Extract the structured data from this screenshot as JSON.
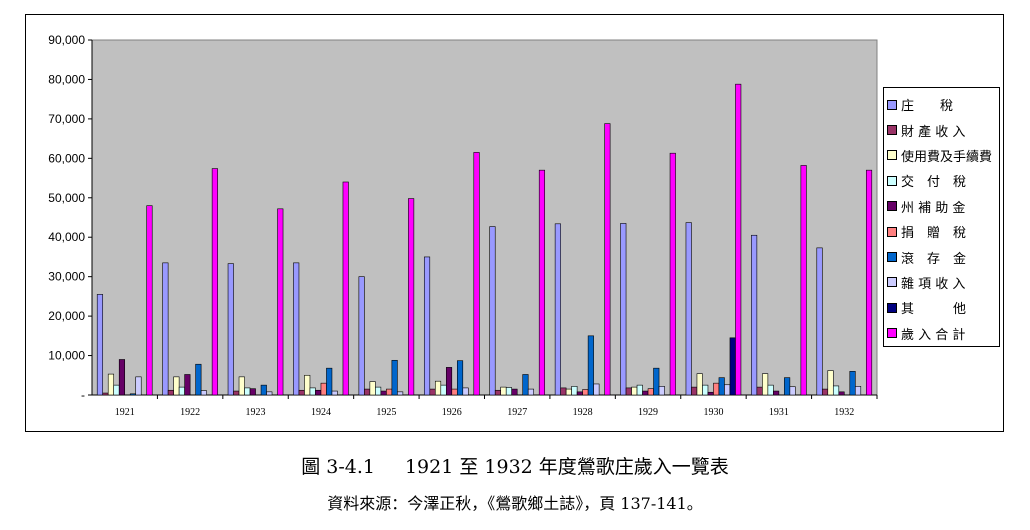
{
  "chart_data": {
    "type": "bar",
    "categories": [
      "1921",
      "1922",
      "1923",
      "1924",
      "1925",
      "1926",
      "1927",
      "1928",
      "1929",
      "1930",
      "1931",
      "1932"
    ],
    "ylim": [
      0,
      90000
    ],
    "yticks": [
      "-",
      "10,000",
      "20,000",
      "30,000",
      "40,000",
      "50,000",
      "60,000",
      "70,000",
      "80,000",
      "90,000"
    ],
    "grid": false,
    "legend_position": "right",
    "plot_background": "#c0c0c0",
    "series": [
      {
        "name": "庄　稅",
        "color": "#9999ff",
        "values": [
          25500,
          33500,
          33300,
          33500,
          30000,
          35000,
          42700,
          43400,
          43500,
          43700,
          40500,
          37300
        ]
      },
      {
        "name": "財產收入",
        "color": "#993366",
        "values": [
          500,
          1200,
          1000,
          1200,
          1500,
          1500,
          1200,
          1800,
          1800,
          2000,
          2000,
          1500
        ]
      },
      {
        "name": "使用費及手續費",
        "color": "#ffffcc",
        "values": [
          5300,
          4600,
          4600,
          5000,
          3400,
          3500,
          2000,
          1500,
          2000,
          5400,
          5400,
          6200
        ]
      },
      {
        "name": "交付稅",
        "color": "#ccffff",
        "values": [
          2500,
          2000,
          1800,
          1800,
          2000,
          2500,
          1900,
          2200,
          2500,
          2500,
          2500,
          2300
        ]
      },
      {
        "name": "州補助金",
        "color": "#660066",
        "values": [
          9000,
          5200,
          1600,
          1200,
          1000,
          7000,
          1500,
          800,
          1000,
          700,
          1000,
          800
        ]
      },
      {
        "name": "捐贈稅",
        "color": "#ff8080",
        "values": [
          0,
          0,
          0,
          3000,
          1500,
          1500,
          0,
          1400,
          1600,
          3000,
          0,
          0
        ]
      },
      {
        "name": "滾存金",
        "color": "#0066cc",
        "values": [
          300,
          7800,
          2500,
          6800,
          8800,
          8700,
          5200,
          15000,
          6800,
          4400,
          4400,
          6000
        ]
      },
      {
        "name": "雜項收入",
        "color": "#ccccff",
        "values": [
          4600,
          1100,
          800,
          1000,
          800,
          1800,
          1500,
          2800,
          2200,
          2600,
          2100,
          2200
        ]
      },
      {
        "name": "其　他",
        "color": "#000080",
        "values": [
          0,
          0,
          0,
          0,
          0,
          0,
          0,
          0,
          0,
          14500,
          0,
          0
        ]
      },
      {
        "name": "歲入合計",
        "color": "#ff00ff",
        "values": [
          48000,
          57400,
          47200,
          54000,
          49800,
          61500,
          57000,
          68800,
          61300,
          78800,
          58200,
          57000
        ]
      }
    ]
  },
  "legend_display": [
    "庄　　稅",
    "財 產 收 入",
    "使用費及手續費",
    "交　付　稅",
    "州 補 助 金",
    "捐　贈　稅",
    "滾　存　金",
    "雜 項 收 入",
    "其　　　他",
    "歲 入 合 計"
  ],
  "caption": {
    "label": "圖 3-4.1",
    "title": "1921 至 1932 年度鶯歌庄歲入一覽表"
  },
  "source": "資料來源：今澤正秋，《鶯歌鄉土誌》，頁 137-141。"
}
